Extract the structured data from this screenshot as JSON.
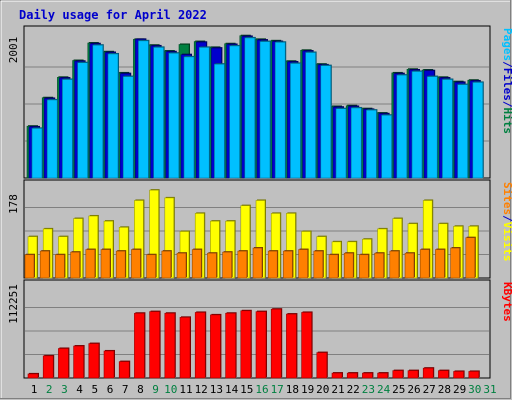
{
  "colors": {
    "background": "#c0c0c0",
    "title": "#0000cc",
    "pages": "#00c0ff",
    "files": "#0000cc",
    "hits": "#008040",
    "visits": "#ffff00",
    "sites": "#ff8000",
    "kbytes": "#ff0000",
    "weekend_day": "#008040",
    "weekday": "#000000"
  },
  "chart_data": {
    "type": "bar",
    "title": "Daily usage for April 2022",
    "days": [
      "1",
      "2",
      "3",
      "4",
      "5",
      "6",
      "7",
      "8",
      "9",
      "10",
      "11",
      "12",
      "13",
      "14",
      "15",
      "16",
      "17",
      "18",
      "19",
      "20",
      "21",
      "22",
      "23",
      "24",
      "25",
      "26",
      "27",
      "28",
      "29",
      "30",
      "31"
    ],
    "weekend_days": [
      "2",
      "3",
      "9",
      "10",
      "16",
      "17",
      "23",
      "24",
      "30",
      "31"
    ],
    "panels": [
      {
        "name": "hits-files-pages",
        "max_label": "2001",
        "ymax": 2001,
        "legend": [
          "Pages",
          "/",
          "Files",
          "/",
          "Hits"
        ],
        "legend_colors": [
          "pages",
          "files",
          "files",
          "files",
          "hits"
        ],
        "series": [
          {
            "name": "Hits",
            "color": "hits",
            "values": [
              710,
              1100,
              1380,
              1610,
              1850,
              1730,
              1440,
              1900,
              1820,
              1740,
              1830,
              1870,
              1790,
              1840,
              1950,
              1900,
              1880,
              1600,
              1750,
              1560,
              980,
              990,
              950,
              890,
              1440,
              1490,
              1480,
              1380,
              1320,
              1340,
              0
            ]
          },
          {
            "name": "Files",
            "color": "files",
            "values": [
              700,
              1090,
              1370,
              1600,
              1840,
              1720,
              1430,
              1900,
              1810,
              1730,
              1690,
              1860,
              1780,
              1830,
              1940,
              1890,
              1870,
              1590,
              1740,
              1550,
              970,
              980,
              940,
              880,
              1430,
              1480,
              1470,
              1370,
              1310,
              1330,
              0
            ]
          },
          {
            "name": "Pages",
            "color": "pages",
            "values": [
              680,
              1070,
              1350,
              1580,
              1820,
              1700,
              1390,
              1880,
              1790,
              1710,
              1660,
              1790,
              1560,
              1810,
              1920,
              1870,
              1860,
              1570,
              1720,
              1540,
              950,
              960,
              930,
              860,
              1410,
              1460,
              1390,
              1350,
              1280,
              1310,
              0
            ]
          }
        ]
      },
      {
        "name": "visits-sites",
        "max_label": "178",
        "ymax": 178,
        "legend": [
          "Sites",
          "/",
          "Visits"
        ],
        "legend_colors": [
          "sites",
          "files",
          "visits"
        ],
        "series": [
          {
            "name": "Visits",
            "color": "visits",
            "values": [
              80,
              95,
              80,
              115,
              120,
              110,
              98,
              150,
              170,
              155,
              90,
              125,
              110,
              110,
              140,
              150,
              125,
              125,
              90,
              80,
              70,
              70,
              75,
              95,
              115,
              105,
              150,
              105,
              100,
              100,
              0
            ]
          },
          {
            "name": "Sites",
            "color": "sites",
            "values": [
              45,
              52,
              45,
              50,
              55,
              55,
              52,
              55,
              45,
              52,
              48,
              55,
              48,
              50,
              52,
              58,
              52,
              52,
              55,
              52,
              45,
              48,
              45,
              48,
              52,
              48,
              55,
              55,
              58,
              78,
              0
            ]
          }
        ]
      },
      {
        "name": "kbytes",
        "max_label": "112251",
        "ymax": 112251,
        "legend": [
          "KBytes"
        ],
        "legend_colors": [
          "kbytes"
        ],
        "series": [
          {
            "name": "KBytes",
            "color": "kbytes",
            "values": [
              5000,
              27000,
              36000,
              39000,
              42000,
              33000,
              20000,
              79000,
              81000,
              79000,
              74000,
              80000,
              77000,
              79000,
              82000,
              81000,
              84000,
              78000,
              80000,
              31000,
              6000,
              6000,
              6000,
              6000,
              9000,
              9000,
              12000,
              9000,
              8000,
              8000,
              0
            ]
          }
        ]
      }
    ]
  }
}
